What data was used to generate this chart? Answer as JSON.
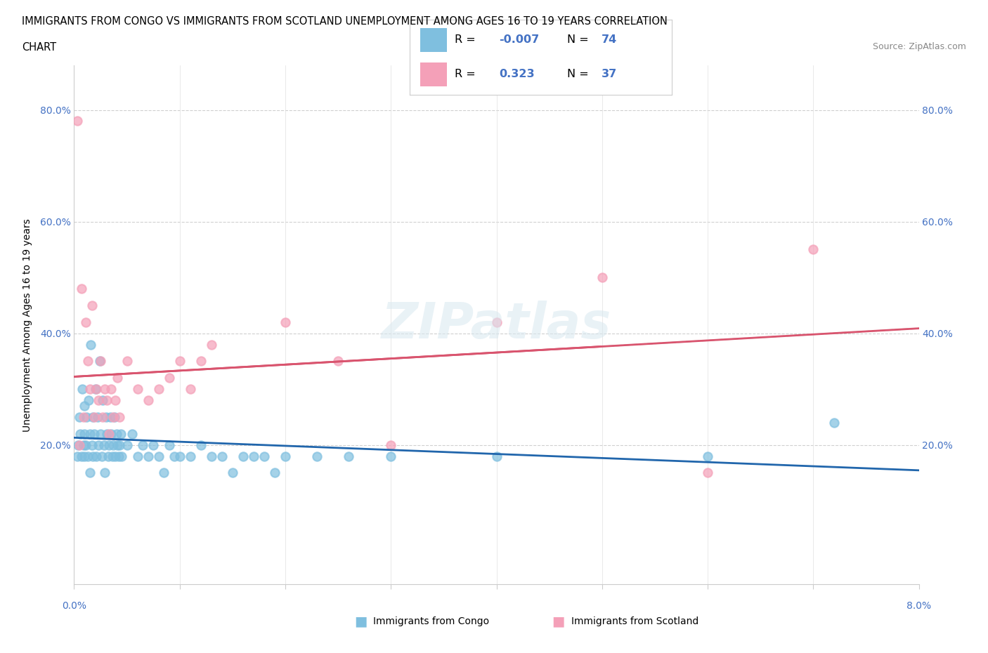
{
  "title_line1": "IMMIGRANTS FROM CONGO VS IMMIGRANTS FROM SCOTLAND UNEMPLOYMENT AMONG AGES 16 TO 19 YEARS CORRELATION",
  "title_line2": "CHART",
  "source": "Source: ZipAtlas.com",
  "ylabel": "Unemployment Among Ages 16 to 19 years",
  "R_congo": -0.007,
  "N_congo": 74,
  "R_scotland": 0.323,
  "N_scotland": 37,
  "color_congo": "#7fbfdf",
  "color_scotland": "#f4a0b8",
  "color_trendline_congo": "#2166ac",
  "color_trendline_scotland": "#d9546e",
  "color_trendline_scotland_dashed": "#b0c4de",
  "background_color": "#ffffff",
  "tick_color": "#4472c4",
  "congo_x": [
    0.0003,
    0.0004,
    0.0005,
    0.0006,
    0.0007,
    0.0008,
    0.0009,
    0.001,
    0.001,
    0.001,
    0.0011,
    0.0012,
    0.0013,
    0.0014,
    0.0015,
    0.0015,
    0.0016,
    0.0017,
    0.0018,
    0.0018,
    0.0019,
    0.002,
    0.0021,
    0.0022,
    0.0023,
    0.0024,
    0.0025,
    0.0026,
    0.0027,
    0.0028,
    0.0029,
    0.003,
    0.0031,
    0.0032,
    0.0033,
    0.0034,
    0.0035,
    0.0036,
    0.0037,
    0.0038,
    0.0039,
    0.004,
    0.0041,
    0.0042,
    0.0043,
    0.0044,
    0.0045,
    0.005,
    0.0055,
    0.006,
    0.0065,
    0.007,
    0.0075,
    0.008,
    0.0085,
    0.009,
    0.0095,
    0.01,
    0.011,
    0.012,
    0.013,
    0.014,
    0.015,
    0.016,
    0.017,
    0.018,
    0.019,
    0.02,
    0.023,
    0.026,
    0.03,
    0.04,
    0.06,
    0.072
  ],
  "congo_y": [
    0.18,
    0.2,
    0.25,
    0.22,
    0.18,
    0.3,
    0.2,
    0.27,
    0.22,
    0.18,
    0.2,
    0.25,
    0.18,
    0.28,
    0.22,
    0.15,
    0.38,
    0.2,
    0.25,
    0.18,
    0.22,
    0.3,
    0.18,
    0.25,
    0.2,
    0.35,
    0.22,
    0.18,
    0.28,
    0.2,
    0.15,
    0.25,
    0.22,
    0.18,
    0.2,
    0.25,
    0.22,
    0.18,
    0.2,
    0.25,
    0.18,
    0.22,
    0.2,
    0.18,
    0.2,
    0.22,
    0.18,
    0.2,
    0.22,
    0.18,
    0.2,
    0.18,
    0.2,
    0.18,
    0.15,
    0.2,
    0.18,
    0.18,
    0.18,
    0.2,
    0.18,
    0.18,
    0.15,
    0.18,
    0.18,
    0.18,
    0.15,
    0.18,
    0.18,
    0.18,
    0.18,
    0.18,
    0.18,
    0.24
  ],
  "scotland_x": [
    0.0003,
    0.0005,
    0.0007,
    0.0009,
    0.0011,
    0.0013,
    0.0015,
    0.0017,
    0.0019,
    0.0021,
    0.0023,
    0.0025,
    0.0027,
    0.0029,
    0.0031,
    0.0033,
    0.0035,
    0.0037,
    0.0039,
    0.0041,
    0.0043,
    0.005,
    0.006,
    0.007,
    0.008,
    0.009,
    0.01,
    0.011,
    0.012,
    0.013,
    0.02,
    0.025,
    0.03,
    0.04,
    0.05,
    0.06,
    0.07
  ],
  "scotland_y": [
    0.78,
    0.2,
    0.48,
    0.25,
    0.42,
    0.35,
    0.3,
    0.45,
    0.25,
    0.3,
    0.28,
    0.35,
    0.25,
    0.3,
    0.28,
    0.22,
    0.3,
    0.25,
    0.28,
    0.32,
    0.25,
    0.35,
    0.3,
    0.28,
    0.3,
    0.32,
    0.35,
    0.3,
    0.35,
    0.38,
    0.42,
    0.35,
    0.2,
    0.42,
    0.5,
    0.15,
    0.55
  ],
  "xlim": [
    0,
    0.08
  ],
  "ylim": [
    -0.05,
    0.88
  ],
  "yticks": [
    0.0,
    0.2,
    0.4,
    0.6,
    0.8
  ],
  "ytick_labels": [
    "",
    "20.0%",
    "40.0%",
    "60.0%",
    "80.0%"
  ],
  "xticks": [
    0.0,
    0.01,
    0.02,
    0.03,
    0.04,
    0.05,
    0.06,
    0.07,
    0.08
  ]
}
